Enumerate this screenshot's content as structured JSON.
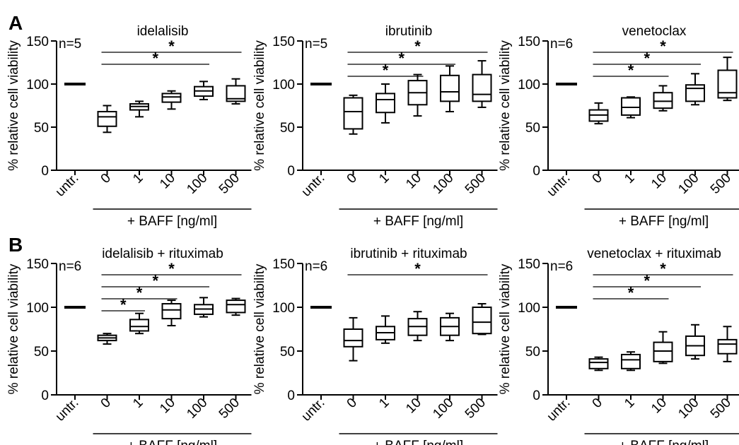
{
  "panels": [
    {
      "label": "A",
      "charts": [
        {
          "type": "box",
          "title": "idelalisib",
          "n_label": "n=5",
          "ylabel": "% relative cell viability",
          "ylim": [
            0,
            150
          ],
          "yticks": [
            0,
            50,
            100,
            150
          ],
          "categories": [
            "untr.",
            "0",
            "1",
            "10",
            "100",
            "500"
          ],
          "xgroup_label": "+ BAFF [ng/ml]",
          "untreated_value": 100,
          "boxes": [
            {
              "min": 44,
              "q1": 51,
              "median": 62,
              "q3": 68,
              "max": 75
            },
            {
              "min": 62,
              "q1": 70,
              "median": 74,
              "q3": 77,
              "max": 80
            },
            {
              "min": 71,
              "q1": 79,
              "median": 85,
              "q3": 89,
              "max": 92
            },
            {
              "min": 82,
              "q1": 86,
              "median": 92,
              "q3": 97,
              "max": 103
            },
            {
              "min": 77,
              "q1": 80,
              "median": 83,
              "q3": 98,
              "max": 106
            }
          ],
          "significance": [
            {
              "from": "0",
              "to": "500",
              "label": "*"
            },
            {
              "from": "0",
              "to": "100",
              "label": "*"
            }
          ]
        },
        {
          "type": "box",
          "title": "ibrutinib",
          "n_label": "n=5",
          "ylabel": "% relative cell viability",
          "ylim": [
            0,
            150
          ],
          "yticks": [
            0,
            50,
            100,
            150
          ],
          "categories": [
            "untr.",
            "0",
            "1",
            "10",
            "100",
            "500"
          ],
          "xgroup_label": "+ BAFF [ng/ml]",
          "untreated_value": 100,
          "boxes": [
            {
              "min": 42,
              "q1": 48,
              "median": 68,
              "q3": 84,
              "max": 87
            },
            {
              "min": 55,
              "q1": 67,
              "median": 82,
              "q3": 89,
              "max": 100
            },
            {
              "min": 63,
              "q1": 76,
              "median": 90,
              "q3": 104,
              "max": 111
            },
            {
              "min": 68,
              "q1": 80,
              "median": 91,
              "q3": 110,
              "max": 121
            },
            {
              "min": 73,
              "q1": 80,
              "median": 88,
              "q3": 111,
              "max": 127
            }
          ],
          "significance": [
            {
              "from": "0",
              "to": "500",
              "label": "*"
            },
            {
              "from": "0",
              "to": "100",
              "label": "*"
            },
            {
              "from": "0",
              "to": "10",
              "label": "*"
            }
          ]
        },
        {
          "type": "box",
          "title": "venetoclax",
          "n_label": "n=6",
          "ylabel": "% relative cell viability",
          "ylim": [
            0,
            150
          ],
          "yticks": [
            0,
            50,
            100,
            150
          ],
          "categories": [
            "untr.",
            "0",
            "1",
            "10",
            "100",
            "500"
          ],
          "xgroup_label": "+ BAFF [ng/ml]",
          "untreated_value": 100,
          "boxes": [
            {
              "min": 54,
              "q1": 57,
              "median": 64,
              "q3": 70,
              "max": 78
            },
            {
              "min": 61,
              "q1": 64,
              "median": 73,
              "q3": 84,
              "max": 85
            },
            {
              "min": 69,
              "q1": 72,
              "median": 80,
              "q3": 90,
              "max": 98
            },
            {
              "min": 76,
              "q1": 80,
              "median": 95,
              "q3": 99,
              "max": 112
            },
            {
              "min": 81,
              "q1": 84,
              "median": 90,
              "q3": 116,
              "max": 131
            }
          ],
          "significance": [
            {
              "from": "0",
              "to": "500",
              "label": "*"
            },
            {
              "from": "0",
              "to": "100",
              "label": "*"
            },
            {
              "from": "0",
              "to": "10",
              "label": "*"
            }
          ]
        }
      ]
    },
    {
      "label": "B",
      "charts": [
        {
          "type": "box",
          "title": "idelalisib + rituximab",
          "n_label": "n=6",
          "ylabel": "% relative cell viability",
          "ylim": [
            0,
            150
          ],
          "yticks": [
            0,
            50,
            100,
            150
          ],
          "categories": [
            "untr.",
            "0",
            "1",
            "10",
            "100",
            "500"
          ],
          "xgroup_label": "+ BAFF [ng/ml]",
          "untreated_value": 100,
          "boxes": [
            {
              "min": 58,
              "q1": 62,
              "median": 65,
              "q3": 68,
              "max": 70
            },
            {
              "min": 70,
              "q1": 73,
              "median": 78,
              "q3": 86,
              "max": 93
            },
            {
              "min": 79,
              "q1": 87,
              "median": 97,
              "q3": 104,
              "max": 108
            },
            {
              "min": 89,
              "q1": 92,
              "median": 98,
              "q3": 103,
              "max": 111
            },
            {
              "min": 91,
              "q1": 94,
              "median": 103,
              "q3": 108,
              "max": 110
            }
          ],
          "significance": [
            {
              "from": "0",
              "to": "500",
              "label": "*"
            },
            {
              "from": "0",
              "to": "100",
              "label": "*"
            },
            {
              "from": "0",
              "to": "10",
              "label": "*"
            },
            {
              "from": "0",
              "to": "1",
              "label": "*"
            }
          ]
        },
        {
          "type": "box",
          "title": "ibrutinib + rituximab",
          "n_label": "n=6",
          "ylabel": "% relative cell viability",
          "ylim": [
            0,
            150
          ],
          "yticks": [
            0,
            50,
            100,
            150
          ],
          "categories": [
            "untr.",
            "0",
            "1",
            "10",
            "100",
            "500"
          ],
          "xgroup_label": "+ BAFF [ng/ml]",
          "untreated_value": 100,
          "boxes": [
            {
              "min": 39,
              "q1": 55,
              "median": 62,
              "q3": 75,
              "max": 88
            },
            {
              "min": 59,
              "q1": 63,
              "median": 71,
              "q3": 78,
              "max": 90
            },
            {
              "min": 62,
              "q1": 68,
              "median": 78,
              "q3": 87,
              "max": 95
            },
            {
              "min": 62,
              "q1": 68,
              "median": 78,
              "q3": 88,
              "max": 93
            },
            {
              "min": 69,
              "q1": 70,
              "median": 83,
              "q3": 100,
              "max": 104
            }
          ],
          "significance": [
            {
              "from": "0",
              "to": "500",
              "label": "*"
            }
          ]
        },
        {
          "type": "box",
          "title": "venetoclax + rituximab",
          "n_label": "n=6",
          "ylabel": "% relative cell viability",
          "ylim": [
            0,
            150
          ],
          "yticks": [
            0,
            50,
            100,
            150
          ],
          "categories": [
            "untr.",
            "0",
            "1",
            "10",
            "100",
            "500"
          ],
          "xgroup_label": "+ BAFF [ng/ml]",
          "untreated_value": 100,
          "boxes": [
            {
              "min": 28,
              "q1": 30,
              "median": 37,
              "q3": 41,
              "max": 43
            },
            {
              "min": 28,
              "q1": 30,
              "median": 40,
              "q3": 46,
              "max": 49
            },
            {
              "min": 36,
              "q1": 38,
              "median": 50,
              "q3": 60,
              "max": 72
            },
            {
              "min": 41,
              "q1": 45,
              "median": 56,
              "q3": 67,
              "max": 80
            },
            {
              "min": 38,
              "q1": 47,
              "median": 58,
              "q3": 63,
              "max": 78
            }
          ],
          "significance": [
            {
              "from": "0",
              "to": "500",
              "label": "*"
            },
            {
              "from": "0",
              "to": "100",
              "label": "*"
            },
            {
              "from": "0",
              "to": "10",
              "label": "*"
            }
          ]
        }
      ]
    }
  ]
}
